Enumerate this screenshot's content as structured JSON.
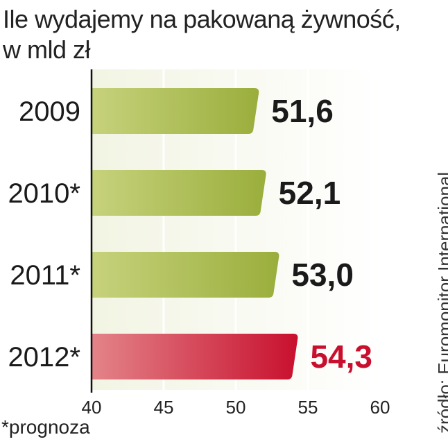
{
  "chart_data": {
    "type": "bar",
    "orientation": "horizontal",
    "title": "Ile wydajemy na pakowaną żywność,",
    "subtitle": "w mld zł",
    "categories": [
      "2009",
      "2010*",
      "2011*",
      "2012*"
    ],
    "values": [
      51.6,
      52.1,
      53.0,
      54.3
    ],
    "value_labels": [
      "51,6",
      "52,1",
      "53,0",
      "54,3"
    ],
    "xlim": [
      40,
      60
    ],
    "xticks": [
      40,
      45,
      50,
      55,
      60
    ],
    "grid": true,
    "highlight_index": 3,
    "colors": {
      "bar": "#9aae3c",
      "bar_light": "#c7d27c",
      "highlight": "#c8102e",
      "highlight_light": "#e38489",
      "plot_bg": "#f2f4e3",
      "value_text": "#1a1a1a",
      "highlight_text": "#c8102e"
    },
    "footnote": "*prognoza",
    "source": "źródło: Euromonitor International"
  }
}
